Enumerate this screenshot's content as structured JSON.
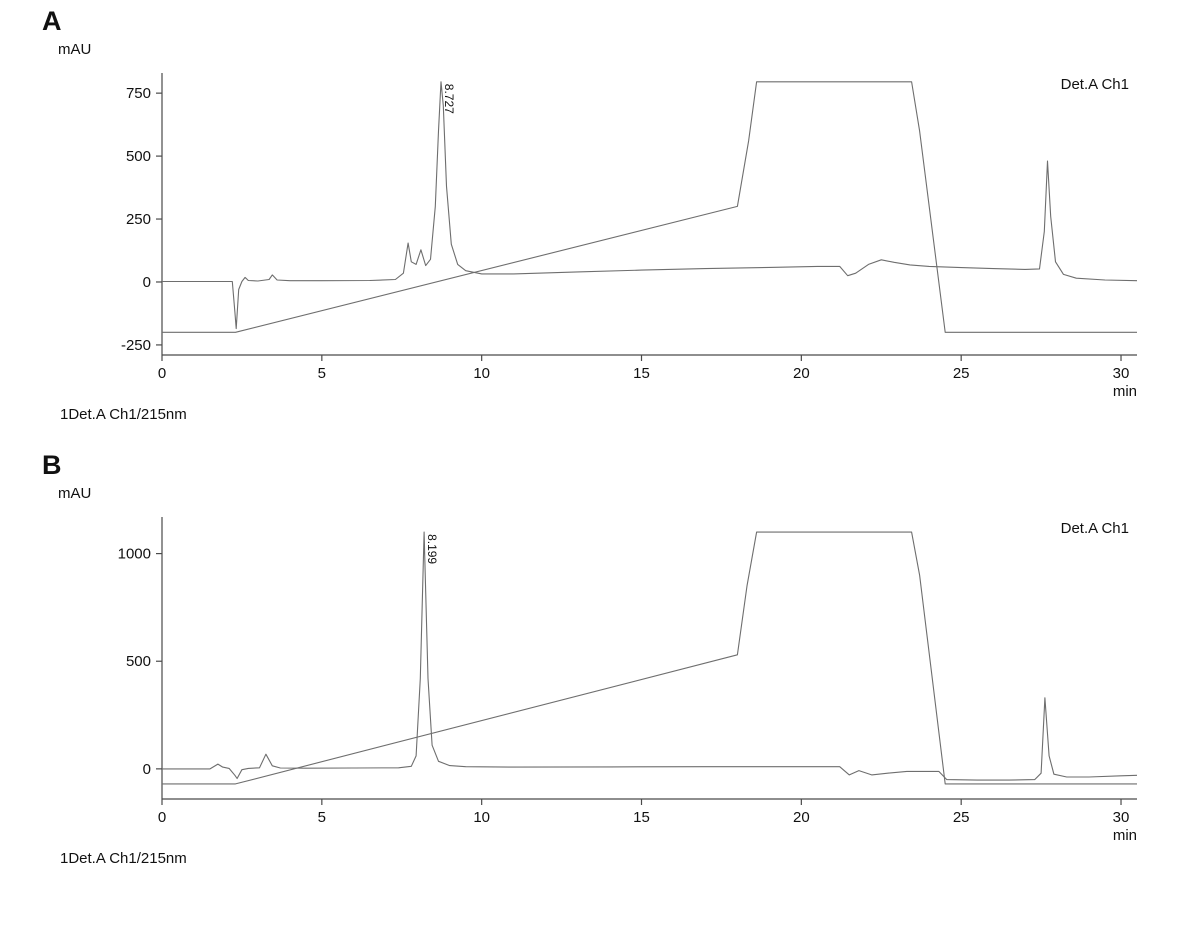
{
  "colors": {
    "trace": "#6e6e6e",
    "axis": "#4a4a4a",
    "text": "#111111"
  },
  "panels": [
    {
      "panel_label": "A",
      "channel": "1Det.A Ch1/215nm"
    },
    {
      "panel_label": "B",
      "channel": "1Det.A Ch1/215nm"
    }
  ],
  "chart_data": [
    {
      "type": "line",
      "title": "",
      "xlabel": "min",
      "ylabel": "mAU",
      "xlim": [
        0,
        30.5
      ],
      "ylim": [
        -290,
        830
      ],
      "xticks": [
        0,
        5,
        10,
        15,
        20,
        25,
        30
      ],
      "yticks": [
        750,
        500,
        250,
        0,
        -250
      ],
      "grid": false,
      "legend": [
        "Det.A Ch1"
      ],
      "legend_position": "top-right",
      "annotations": [
        {
          "text": "8.727",
          "x": 8.727,
          "y": 795,
          "rotation": 90
        }
      ],
      "series": [
        {
          "name": "detector-signal",
          "points": [
            [
              0,
              2
            ],
            [
              1.5,
              2
            ],
            [
              2.2,
              2
            ],
            [
              2.28,
              -120
            ],
            [
              2.32,
              -185
            ],
            [
              2.4,
              -30
            ],
            [
              2.5,
              2
            ],
            [
              2.6,
              18
            ],
            [
              2.7,
              6
            ],
            [
              3.0,
              4
            ],
            [
              3.35,
              10
            ],
            [
              3.45,
              28
            ],
            [
              3.6,
              8
            ],
            [
              4.0,
              5
            ],
            [
              5.0,
              5
            ],
            [
              6.5,
              6
            ],
            [
              7.3,
              10
            ],
            [
              7.55,
              35
            ],
            [
              7.7,
              155
            ],
            [
              7.8,
              80
            ],
            [
              7.95,
              70
            ],
            [
              8.1,
              128
            ],
            [
              8.25,
              65
            ],
            [
              8.4,
              90
            ],
            [
              8.55,
              300
            ],
            [
              8.65,
              600
            ],
            [
              8.727,
              795
            ],
            [
              8.8,
              700
            ],
            [
              8.9,
              380
            ],
            [
              9.05,
              150
            ],
            [
              9.25,
              70
            ],
            [
              9.5,
              45
            ],
            [
              10,
              32
            ],
            [
              11,
              32
            ],
            [
              13,
              40
            ],
            [
              15,
              47
            ],
            [
              17,
              53
            ],
            [
              19,
              58
            ],
            [
              20.5,
              62
            ],
            [
              21.2,
              62
            ],
            [
              21.45,
              25
            ],
            [
              21.7,
              35
            ],
            [
              22.1,
              70
            ],
            [
              22.5,
              88
            ],
            [
              22.9,
              78
            ],
            [
              23.4,
              68
            ],
            [
              24,
              62
            ],
            [
              25,
              57
            ],
            [
              26,
              53
            ],
            [
              27,
              50
            ],
            [
              27.45,
              52
            ],
            [
              27.6,
              200
            ],
            [
              27.7,
              480
            ],
            [
              27.8,
              260
            ],
            [
              27.95,
              80
            ],
            [
              28.2,
              30
            ],
            [
              28.6,
              15
            ],
            [
              29.5,
              8
            ],
            [
              30.5,
              5
            ]
          ]
        },
        {
          "name": "gradient-program",
          "points": [
            [
              0,
              -200
            ],
            [
              2.3,
              -200
            ],
            [
              18.0,
              300
            ],
            [
              18.35,
              560
            ],
            [
              18.6,
              795
            ],
            [
              23.45,
              795
            ],
            [
              23.7,
              600
            ],
            [
              24.5,
              -200
            ],
            [
              30.5,
              -200
            ]
          ]
        }
      ]
    },
    {
      "type": "line",
      "title": "",
      "xlabel": "min",
      "ylabel": "mAU",
      "xlim": [
        0,
        30.5
      ],
      "ylim": [
        -140,
        1170
      ],
      "xticks": [
        0,
        5,
        10,
        15,
        20,
        25,
        30
      ],
      "yticks": [
        1000,
        500,
        0
      ],
      "grid": false,
      "legend": [
        "Det.A Ch1"
      ],
      "legend_position": "top-right",
      "annotations": [
        {
          "text": "8.199",
          "x": 8.199,
          "y": 1100,
          "rotation": 90
        }
      ],
      "series": [
        {
          "name": "detector-signal",
          "points": [
            [
              0,
              0
            ],
            [
              1.5,
              0
            ],
            [
              1.75,
              22
            ],
            [
              1.9,
              8
            ],
            [
              2.1,
              2
            ],
            [
              2.28,
              -30
            ],
            [
              2.35,
              -45
            ],
            [
              2.5,
              -4
            ],
            [
              2.7,
              2
            ],
            [
              3.05,
              5
            ],
            [
              3.25,
              68
            ],
            [
              3.45,
              14
            ],
            [
              3.7,
              4
            ],
            [
              4.5,
              3
            ],
            [
              6,
              4
            ],
            [
              7.4,
              5
            ],
            [
              7.8,
              12
            ],
            [
              7.95,
              60
            ],
            [
              8.08,
              420
            ],
            [
              8.199,
              1100
            ],
            [
              8.32,
              420
            ],
            [
              8.45,
              110
            ],
            [
              8.65,
              35
            ],
            [
              9,
              15
            ],
            [
              9.5,
              10
            ],
            [
              11,
              8
            ],
            [
              14,
              9
            ],
            [
              17,
              10
            ],
            [
              20,
              10
            ],
            [
              21.2,
              10
            ],
            [
              21.5,
              -28
            ],
            [
              21.8,
              -8
            ],
            [
              22.2,
              -28
            ],
            [
              22.7,
              -20
            ],
            [
              23.3,
              -12
            ],
            [
              24.3,
              -12
            ],
            [
              24.55,
              -50
            ],
            [
              25.5,
              -52
            ],
            [
              26.5,
              -52
            ],
            [
              27.3,
              -50
            ],
            [
              27.5,
              -20
            ],
            [
              27.62,
              330
            ],
            [
              27.75,
              60
            ],
            [
              27.9,
              -25
            ],
            [
              28.3,
              -38
            ],
            [
              29,
              -38
            ],
            [
              30,
              -32
            ],
            [
              30.5,
              -30
            ]
          ]
        },
        {
          "name": "gradient-program",
          "points": [
            [
              0,
              -70
            ],
            [
              2.3,
              -70
            ],
            [
              18.0,
              530
            ],
            [
              18.3,
              850
            ],
            [
              18.6,
              1100
            ],
            [
              23.45,
              1100
            ],
            [
              23.7,
              900
            ],
            [
              24.5,
              -70
            ],
            [
              30.5,
              -70
            ]
          ]
        }
      ]
    }
  ]
}
